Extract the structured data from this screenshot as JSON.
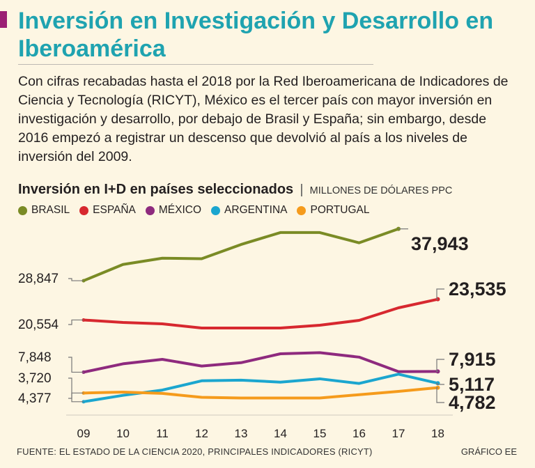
{
  "header": {
    "title": "Inversión en Investigación y Desarrollo en Iberoamérica",
    "intro": "Con cifras recabadas hasta el 2018 por la Red Iberoamericana de Indicadores de Ciencia y Tecnología (RICYT), México es el tercer país con mayor inversión en investigación y desarrollo, por debajo de Brasil y España; sin embargo, desde 2016 empezó a registrar un descenso que devolvió al país a los niveles de inversión del 2009."
  },
  "colors": {
    "title": "#1fa3b0",
    "accent": "#9b1f74"
  },
  "chart_data": {
    "type": "line",
    "title": "Inversión en I+D en países seleccionados",
    "separator": "|",
    "units": "MILLONES DE DÓLARES PPC",
    "x": [
      "09",
      "10",
      "11",
      "12",
      "13",
      "14",
      "15",
      "16",
      "17",
      "18"
    ],
    "series": [
      {
        "name": "BRASIL",
        "color": "#7a8b25",
        "values": [
          28847,
          31700,
          32800,
          32700,
          35200,
          37300,
          37300,
          35500,
          37943,
          null
        ],
        "start_label": "28,847",
        "end_label": "37,943"
      },
      {
        "name": "ESPAÑA",
        "color": "#d7282f",
        "values": [
          20554,
          20200,
          20000,
          19400,
          19400,
          19400,
          19800,
          20500,
          22300,
          23535
        ],
        "start_label": "20,554",
        "end_label": "23,535"
      },
      {
        "name": "MÉXICO",
        "color": "#8e2a7e",
        "values": [
          7848,
          8600,
          9000,
          8400,
          8700,
          9500,
          9600,
          9200,
          7900,
          7915
        ],
        "start_label": "7,848",
        "end_label": "7,915"
      },
      {
        "name": "ARGENTINA",
        "color": "#1ba6cf",
        "values": [
          3720,
          4200,
          4600,
          5300,
          5350,
          5200,
          5450,
          5100,
          5800,
          5117
        ],
        "start_label": "3,720",
        "end_label": "5,117"
      },
      {
        "name": "PORTUGAL",
        "color": "#f59b1c",
        "values": [
          4377,
          4450,
          4350,
          4050,
          4000,
          4000,
          4000,
          4250,
          4500,
          4782
        ],
        "start_label": "4,377",
        "end_label": "4,782"
      }
    ]
  },
  "footer": {
    "source": "FUENTE: EL ESTADO DE LA CIENCIA 2020, PRINCIPALES INDICADORES (RICYT)",
    "credit": "GRÁFICO EE"
  }
}
